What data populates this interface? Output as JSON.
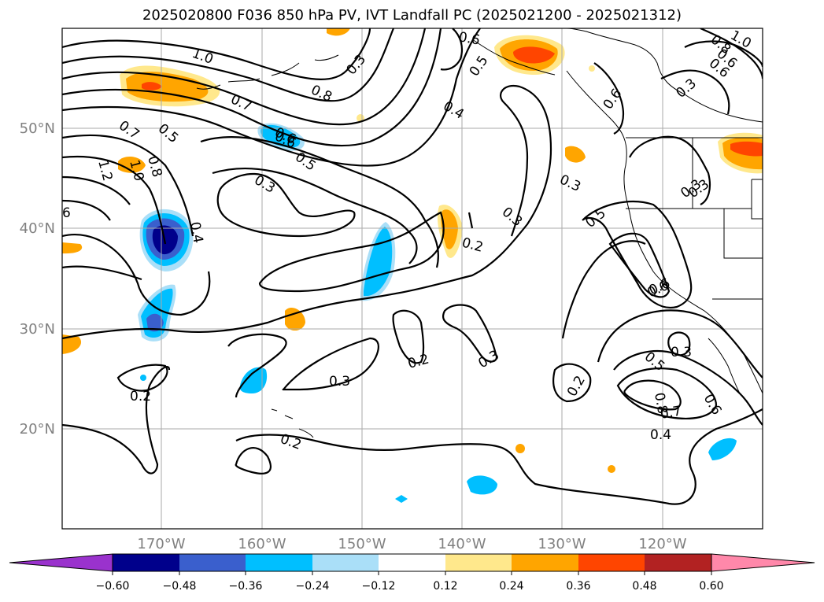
{
  "title": "2025020800 F036 850 hPa PV, IVT Landfall PC (2025021200 - 2025021312)",
  "map": {
    "lon_labels": [
      "170°W",
      "160°W",
      "150°W",
      "140°W",
      "130°W",
      "120°W"
    ],
    "lat_labels": [
      "50°N",
      "40°N",
      "30°N",
      "20°N"
    ],
    "contour_labels": [
      "1.0",
      "0.3",
      "0.6",
      "1.0",
      "0.5",
      "0.7",
      "0.8",
      "0.4",
      "0.6",
      "0.7",
      "0.5",
      "1.2",
      "1.0",
      "0.8",
      "0.6",
      "0.5",
      "0.3",
      "0.4",
      "0.2",
      "0.3",
      "0.3",
      "0.5",
      "0.3",
      "0.6",
      "0.2",
      "0.3",
      "0.3",
      "0.2",
      "0.2",
      "0.6",
      "0.3",
      "0.5",
      "0.8",
      "0.7",
      "0.6",
      "0.4",
      "0.2",
      "6",
      "0.8",
      "0.6",
      "0.6",
      "0.3",
      "0.6",
      "0.3"
    ]
  },
  "colorbar": {
    "labels": [
      "−0.60",
      "−0.48",
      "−0.36",
      "−0.24",
      "−0.12",
      "0.12",
      "0.24",
      "0.36",
      "0.48",
      "0.60"
    ],
    "colors": [
      "#9a32cd",
      "#00008b",
      "#3a5fcd",
      "#00bfff",
      "#aadff8",
      "#ffffff",
      "#ffe88c",
      "#ffa500",
      "#ff4500",
      "#b22222",
      "#ff88aa"
    ]
  },
  "shading_colors": {
    "neg_light": "#aadff8",
    "neg_mid": "#00bfff",
    "neg_strong": "#3a5fcd",
    "neg_max": "#00008b",
    "pos_light": "#ffe88c",
    "pos_mid": "#ffa500",
    "pos_strong": "#ff4500"
  }
}
